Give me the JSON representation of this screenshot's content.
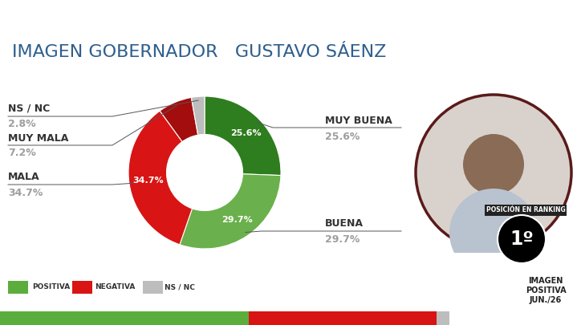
{
  "chart_data": {
    "type": "donut",
    "title": "IMAGEN GOBERNADOR   GUSTAVO SÁENZ",
    "categories": [
      "MUY BUENA",
      "BUENA",
      "MALA",
      "MUY MALA",
      "NS / NC"
    ],
    "values": [
      25.6,
      29.7,
      34.7,
      7.2,
      2.8
    ],
    "value_labels": [
      "25.6%",
      "29.7%",
      "34.7%",
      "7.2%",
      "2.8%"
    ],
    "inner_labels": [
      "25.6%",
      "29.7%",
      "34.7%",
      null,
      null
    ],
    "colors": [
      "#2e7d1e",
      "#6ab04c",
      "#d81414",
      "#a30d0d",
      "#bdbdbd"
    ],
    "data_labels": true,
    "summary": {
      "categories": [
        "POSITIVA",
        "NEGATIVA",
        "NS / NC"
      ],
      "values": [
        55.3,
        41.9,
        2.8
      ],
      "colors": [
        "#5cae3c",
        "#d81414",
        "#bdbdbd"
      ],
      "stacked": true
    },
    "ranking": {
      "label": "POSICIÓN EN RANKING",
      "position": 1,
      "position_label": "1º"
    },
    "rank_note": [
      "IMAGEN",
      "POSITIVA",
      "JUN./26"
    ]
  }
}
